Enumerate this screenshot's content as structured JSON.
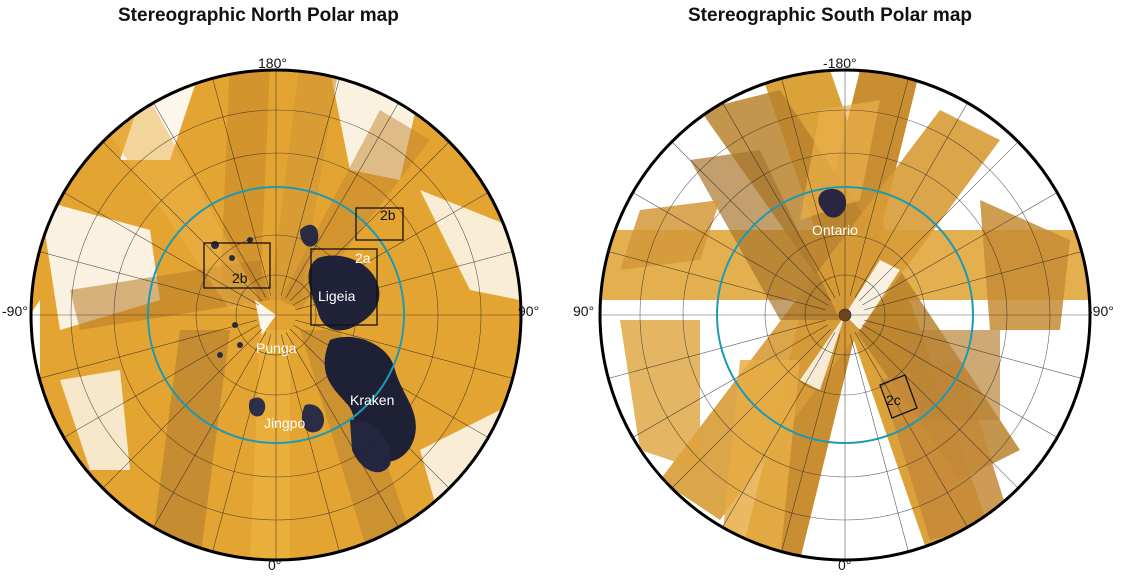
{
  "maps": [
    {
      "id": "north",
      "title": "Stereographic North Polar map",
      "lon_labels": {
        "top": "180°",
        "bottom": "0°",
        "left": "-90°",
        "right": "90°"
      },
      "features": [
        "Ligeia",
        "Punga",
        "Kraken",
        "Jingpo"
      ],
      "boxes": [
        "2b",
        "2b",
        "2a"
      ]
    },
    {
      "id": "south",
      "title": "Stereographic South Polar map",
      "lon_labels": {
        "top": "-180°",
        "bottom": "0°",
        "left": "90°",
        "right": "-90°"
      },
      "features": [
        "Ontario"
      ],
      "boxes": [
        "2c"
      ]
    }
  ],
  "colors": {
    "terrain": "#e8a62a",
    "terrain_dark": "#8a5a1c",
    "lake": "#1e2036",
    "reference_circle": "#1b9ab5",
    "graticule": "#222222"
  }
}
